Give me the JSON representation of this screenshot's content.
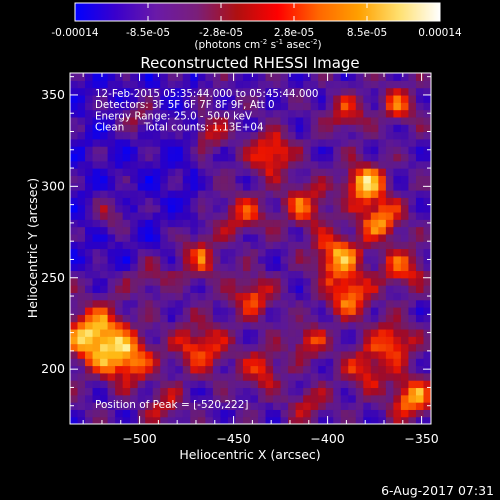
{
  "colorbar": {
    "tick_labels": [
      "-0.00014",
      "-8.5e-05",
      "-2.8e-05",
      "2.8e-05",
      "8.5e-05",
      "0.00014"
    ],
    "range": [
      -0.00014,
      0.00014
    ],
    "unit_label": "(photons cm",
    "unit_sup1": "-2",
    "unit_mid": " s",
    "unit_sup2": "-1",
    "unit_end": " asec",
    "unit_sup3": "-2",
    "unit_close": ")",
    "colors": [
      "#0000ff",
      "#3a00cc",
      "#6a1aa8",
      "#7a1f7a",
      "#b01010",
      "#ff0000",
      "#ff6600",
      "#ffa000",
      "#ffe070",
      "#ffffff"
    ]
  },
  "chart_data": {
    "type": "heatmap",
    "title": "Reconstructed RHESSI Image",
    "xlabel": "Heliocentric X (arcsec)",
    "ylabel": "Heliocentric Y (arcsec)",
    "xlim": [
      -537,
      -345
    ],
    "ylim": [
      170,
      362
    ],
    "x_ticks": [
      -500,
      -450,
      -400,
      -350
    ],
    "x_tick_labels": [
      "−500",
      "−450",
      "−400",
      "−350"
    ],
    "y_ticks": [
      200,
      250,
      300,
      350
    ],
    "y_tick_labels": [
      "200",
      "250",
      "300",
      "350"
    ],
    "grid": false,
    "colormap": "blue-purple-red-yellow-white",
    "info_lines": [
      "12-Feb-2015 05:35:44.000 to 05:45:44.000",
      "Detectors: 3F 5F 6F 7F 8F 9F, Att 0",
      "Energy Range: 25.0 - 50.0 keV",
      "Clean      Total counts: 1.13E+04"
    ],
    "peak_label": "Position of Peak = [-520,222]",
    "peak": [
      -520,
      222
    ]
  },
  "footer": {
    "timestamp": "6-Aug-2017 07:31"
  }
}
